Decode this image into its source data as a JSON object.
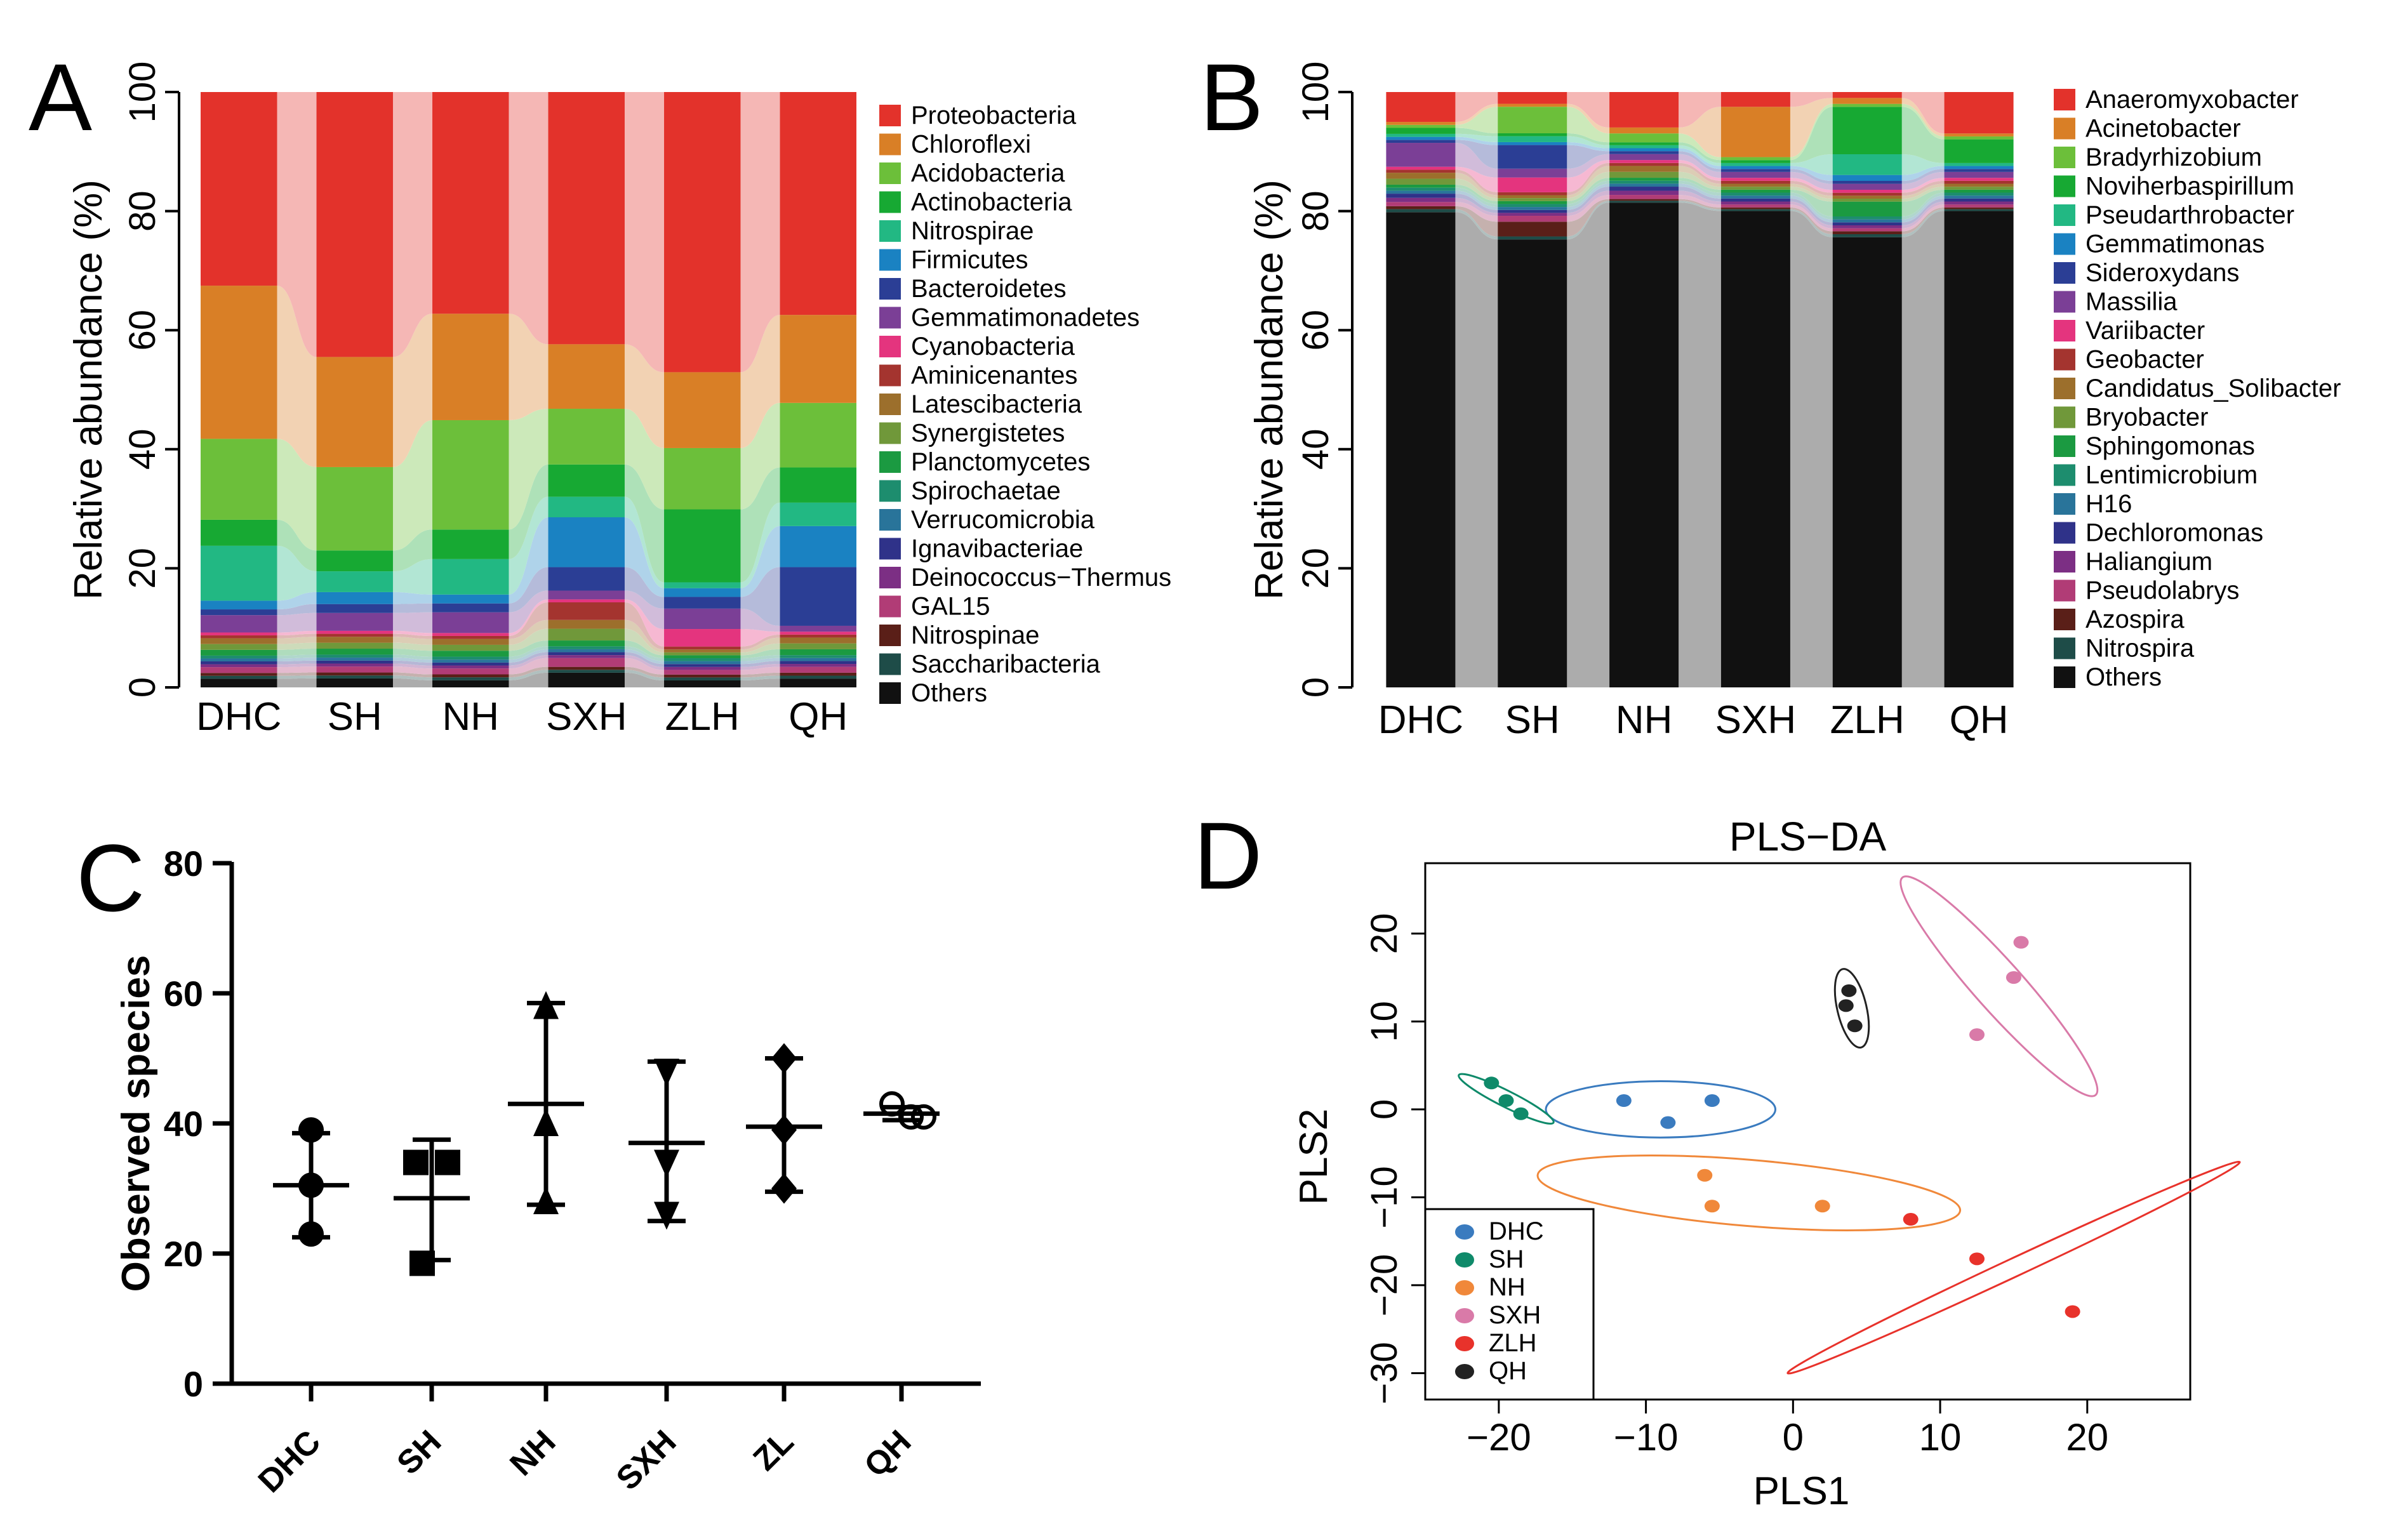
{
  "panels": {
    "A": {
      "label": "A"
    },
    "B": {
      "label": "B"
    },
    "C": {
      "label": "C"
    },
    "D": {
      "label": "D"
    }
  },
  "chart_data": [
    {
      "id": "A",
      "type": "bar",
      "subtype": "stacked-100-with-alluvial-bands",
      "title": "",
      "xlabel": "",
      "ylabel": "Relative abundance (%)",
      "ylim": [
        0,
        100
      ],
      "yticks": [
        0,
        20,
        40,
        60,
        80,
        100
      ],
      "categories": [
        "DHC",
        "SH",
        "NH",
        "SXH",
        "ZLH",
        "QH"
      ],
      "colors": {
        "Proteobacteria": "#e3322b",
        "Chloroflexi": "#d97f26",
        "Acidobacteria": "#6cbf3a",
        "Actinobacteria": "#17a933",
        "Nitrospirae": "#22b883",
        "Firmicutes": "#1a82c2",
        "Bacteroidetes": "#2b3e95",
        "Gemmatimonadetes": "#7b3f96",
        "Cyanobacteria": "#e4347e",
        "Aminicenantes": "#a4342f",
        "Latescibacteria": "#9c6f2c",
        "Synergistetes": "#70983a",
        "Planctomycetes": "#1b9a41",
        "Spirochaetae": "#1d8d6e",
        "Verrucomicrobia": "#29749a",
        "Ignavibacteriae": "#2f3289",
        "Deinococcus-Thermus": "#7c2f84",
        "GAL15": "#b13c76",
        "Nitrospinae": "#5a1f18",
        "Saccharibacteria": "#1e4c48",
        "Others": "#111111"
      },
      "series": [
        {
          "name": "Others",
          "values": [
            1.5,
            1.5,
            1.2,
            2.5,
            1.2,
            1.5
          ]
        },
        {
          "name": "Saccharibacteria",
          "values": [
            0.5,
            0.5,
            0.5,
            0.5,
            0.5,
            0.5
          ]
        },
        {
          "name": "Nitrospinae",
          "values": [
            0.5,
            0.5,
            0.5,
            0.5,
            0.5,
            0.5
          ]
        },
        {
          "name": "GAL15",
          "values": [
            1.0,
            1.0,
            1.0,
            1.5,
            0.8,
            1.0
          ]
        },
        {
          "name": "Deinococcus-Thermus",
          "values": [
            0.5,
            0.5,
            0.5,
            0.5,
            0.5,
            0.5
          ]
        },
        {
          "name": "Ignavibacteriae",
          "values": [
            0.5,
            0.5,
            0.5,
            0.5,
            0.5,
            0.5
          ]
        },
        {
          "name": "Verrucomicrobia",
          "values": [
            0.5,
            0.5,
            0.5,
            0.5,
            0.5,
            0.5
          ]
        },
        {
          "name": "Spirochaetae",
          "values": [
            0.5,
            0.5,
            0.5,
            0.5,
            0.5,
            0.5
          ]
        },
        {
          "name": "Planctomycetes",
          "values": [
            1.0,
            1.0,
            1.0,
            1.0,
            0.5,
            1.0
          ]
        },
        {
          "name": "Synergistetes",
          "values": [
            1.0,
            1.0,
            1.0,
            2.0,
            0.5,
            1.0
          ]
        },
        {
          "name": "Latescibacteria",
          "values": [
            1.0,
            1.0,
            1.0,
            1.5,
            0.5,
            1.0
          ]
        },
        {
          "name": "Aminicenantes",
          "values": [
            0.5,
            0.5,
            0.5,
            3.0,
            0.5,
            0.5
          ]
        },
        {
          "name": "Cyanobacteria",
          "values": [
            0.5,
            0.5,
            0.5,
            0.5,
            3.0,
            0.5
          ]
        },
        {
          "name": "Gemmatimonadetes",
          "values": [
            3.0,
            3.0,
            3.5,
            1.5,
            3.5,
            1.0
          ]
        },
        {
          "name": "Bacteroidetes",
          "values": [
            1.0,
            1.5,
            1.5,
            4.0,
            2.0,
            10.0
          ]
        },
        {
          "name": "Firmicutes",
          "values": [
            1.5,
            2.0,
            1.5,
            8.5,
            1.5,
            7.0
          ]
        },
        {
          "name": "Nitrospirae",
          "values": [
            9.5,
            3.5,
            6.0,
            3.5,
            1.0,
            4.0
          ]
        },
        {
          "name": "Actinobacteria",
          "values": [
            4.5,
            3.5,
            5.0,
            5.5,
            12.5,
            6.0
          ]
        },
        {
          "name": "Acidobacteria",
          "values": [
            14.0,
            14.0,
            18.5,
            9.5,
            10.5,
            11.0
          ]
        },
        {
          "name": "Chloroflexi",
          "values": [
            26.5,
            18.5,
            18.0,
            11.0,
            13.0,
            15.0
          ]
        },
        {
          "name": "Proteobacteria",
          "values": [
            33.5,
            44.5,
            37.5,
            43.0,
            48.0,
            38.0
          ]
        }
      ],
      "legend": [
        "Proteobacteria",
        "Chloroflexi",
        "Acidobacteria",
        "Actinobacteria",
        "Nitrospirae",
        "Firmicutes",
        "Bacteroidetes",
        "Gemmatimonadetes",
        "Cyanobacteria",
        "Aminicenantes",
        "Latescibacteria",
        "Synergistetes",
        "Planctomycetes",
        "Spirochaetae",
        "Verrucomicrobia",
        "Ignavibacteriae",
        "Deinococcus−Thermus",
        "GAL15",
        "Nitrospinae",
        "Saccharibacteria",
        "Others"
      ],
      "legend_position": "right"
    },
    {
      "id": "B",
      "type": "bar",
      "subtype": "stacked-100-with-alluvial-bands",
      "title": "",
      "xlabel": "",
      "ylabel": "Relative abundance (%)",
      "ylim": [
        0,
        100
      ],
      "yticks": [
        0,
        20,
        40,
        60,
        80,
        100
      ],
      "categories": [
        "DHC",
        "SH",
        "NH",
        "SXH",
        "ZLH",
        "QH"
      ],
      "colors": {
        "Anaeromyxobacter": "#e3322b",
        "Acinetobacter": "#d97f26",
        "Bradyrhizobium": "#6cbf3a",
        "Noviherbaspirillum": "#17a933",
        "Pseudarthrobacter": "#22b883",
        "Gemmatimonas": "#1a82c2",
        "Sideroxydans": "#2b3e95",
        "Massilia": "#7b3f96",
        "Variibacter": "#e4347e",
        "Geobacter": "#a4342f",
        "Candidatus_Solibacter": "#9c6f2c",
        "Bryobacter": "#70983a",
        "Sphingomonas": "#1b9a41",
        "Lentimicrobium": "#1d8d6e",
        "H16": "#29749a",
        "Dechloromonas": "#2f3289",
        "Haliangium": "#7c2f84",
        "Pseudolabrys": "#b13c76",
        "Azospira": "#5a1f18",
        "Nitrospira": "#1e4c48",
        "Others": "#111111"
      },
      "series": [
        {
          "name": "Others",
          "values": [
            79.5,
            76.0,
            82.0,
            80.5,
            76.0,
            80.5
          ]
        },
        {
          "name": "Nitrospira",
          "values": [
            0.5,
            0.5,
            0.3,
            0.3,
            0.5,
            0.3
          ]
        },
        {
          "name": "Azospira",
          "values": [
            0.5,
            2.5,
            0.3,
            0.3,
            0.5,
            0.3
          ]
        },
        {
          "name": "Pseudolabrys",
          "values": [
            0.7,
            1.0,
            0.7,
            0.5,
            0.5,
            0.5
          ]
        },
        {
          "name": "Haliangium",
          "values": [
            0.7,
            0.5,
            0.7,
            0.5,
            0.5,
            0.5
          ]
        },
        {
          "name": "Dechloromonas",
          "values": [
            0.7,
            0.5,
            0.7,
            0.5,
            0.5,
            0.5
          ]
        },
        {
          "name": "H16",
          "values": [
            0.5,
            0.5,
            0.5,
            0.5,
            0.5,
            0.5
          ]
        },
        {
          "name": "Lentimicrobium",
          "values": [
            0.5,
            0.5,
            0.5,
            0.5,
            0.5,
            0.5
          ]
        },
        {
          "name": "Sphingomonas",
          "values": [
            0.5,
            0.5,
            0.5,
            0.5,
            2.5,
            0.5
          ]
        },
        {
          "name": "Bryobacter",
          "values": [
            1.0,
            0.5,
            1.0,
            0.5,
            0.5,
            0.5
          ]
        },
        {
          "name": "Candidatus_Solibacter",
          "values": [
            1.0,
            0.5,
            1.0,
            0.5,
            0.5,
            0.5
          ]
        },
        {
          "name": "Geobacter",
          "values": [
            0.5,
            0.5,
            0.5,
            0.5,
            0.5,
            0.5
          ]
        },
        {
          "name": "Variibacter",
          "values": [
            0.5,
            2.5,
            0.5,
            0.5,
            0.5,
            0.5
          ]
        },
        {
          "name": "Massilia",
          "values": [
            4.0,
            1.5,
            1.0,
            1.0,
            1.0,
            1.0
          ]
        },
        {
          "name": "Sideroxydans",
          "values": [
            0.5,
            4.0,
            0.5,
            0.5,
            0.5,
            0.5
          ]
        },
        {
          "name": "Gemmatimonas",
          "values": [
            0.5,
            0.5,
            0.5,
            0.5,
            1.0,
            0.5
          ]
        },
        {
          "name": "Pseudarthrobacter",
          "values": [
            0.5,
            1.0,
            0.5,
            0.5,
            3.5,
            0.5
          ]
        },
        {
          "name": "Noviherbaspirillum",
          "values": [
            1.0,
            0.5,
            0.5,
            0.5,
            8.0,
            4.0
          ]
        },
        {
          "name": "Bradyrhizobium",
          "values": [
            0.5,
            4.5,
            1.5,
            0.5,
            0.5,
            0.5
          ]
        },
        {
          "name": "Acinetobacter",
          "values": [
            0.5,
            0.5,
            1.0,
            8.5,
            1.0,
            0.5
          ]
        },
        {
          "name": "Anaeromyxobacter",
          "values": [
            5.0,
            2.0,
            6.0,
            2.5,
            1.0,
            7.0
          ]
        }
      ],
      "legend": [
        "Anaeromyxobacter",
        "Acinetobacter",
        "Bradyrhizobium",
        "Noviherbaspirillum",
        "Pseudarthrobacter",
        "Gemmatimonas",
        "Sideroxydans",
        "Massilia",
        "Variibacter",
        "Geobacter",
        "Candidatus_Solibacter",
        "Bryobacter",
        "Sphingomonas",
        "Lentimicrobium",
        "H16",
        "Dechloromonas",
        "Haliangium",
        "Pseudolabrys",
        "Azospira",
        "Nitrospira",
        "Others"
      ],
      "legend_position": "right"
    },
    {
      "id": "C",
      "type": "scatter",
      "subtype": "dot-plot-with-mean-and-range",
      "title": "",
      "xlabel": "",
      "ylabel": "Observed species",
      "ylim": [
        0,
        80
      ],
      "yticks": [
        0,
        20,
        40,
        60,
        80
      ],
      "categories": [
        "DHC",
        "SH",
        "NH",
        "SXH",
        "ZL",
        "QH"
      ],
      "groups": [
        {
          "name": "DHC",
          "marker": "circle",
          "points": [
            39,
            30.5,
            23
          ],
          "mean": 30.5,
          "min": 22.5,
          "max": 38.5
        },
        {
          "name": "SH",
          "marker": "square",
          "points": [
            34,
            34,
            18.5
          ],
          "mean": 28.5,
          "min": 19.0,
          "max": 37.5
        },
        {
          "name": "NH",
          "marker": "triangle-up",
          "points": [
            58,
            40,
            28
          ],
          "mean": 43.0,
          "min": 27.5,
          "max": 58.5
        },
        {
          "name": "SXH",
          "marker": "triangle-down",
          "points": [
            48,
            34,
            26
          ],
          "mean": 37.0,
          "min": 25.0,
          "max": 49.5
        },
        {
          "name": "ZL",
          "marker": "diamond",
          "points": [
            50,
            39,
            30
          ],
          "mean": 39.5,
          "min": 29.5,
          "max": 50.0
        },
        {
          "name": "QH",
          "marker": "open-circle",
          "points": [
            43,
            41,
            41
          ],
          "mean": 41.5,
          "min": 40.5,
          "max": 42.5
        }
      ]
    },
    {
      "id": "D",
      "type": "scatter",
      "subtype": "pls-da-with-confidence-ellipses",
      "title": "PLS−DA",
      "xlabel": "PLS1",
      "ylabel": "PLS2",
      "xlim": [
        -25,
        27
      ],
      "ylim": [
        -33,
        28
      ],
      "xticks": [
        "−20",
        "−10",
        "0",
        "10",
        "20"
      ],
      "yticks": [
        "−30",
        "−20",
        "−10",
        "0",
        "10",
        "20"
      ],
      "legend_position": "bottom-left",
      "groups": [
        {
          "name": "DHC",
          "color": "#3a7bbf",
          "points": [
            [
              -11.5,
              1
            ],
            [
              -5.5,
              1
            ],
            [
              -8.5,
              -1.5
            ]
          ],
          "ellipse": {
            "cx": -9,
            "cy": 0,
            "rx": 7.8,
            "ry": 3.2,
            "angle": 0
          }
        },
        {
          "name": "SH",
          "color": "#0f8a6a",
          "points": [
            [
              -20.5,
              3
            ],
            [
              -19.5,
              1
            ],
            [
              -18.5,
              -0.5
            ]
          ],
          "ellipse": {
            "cx": -19.5,
            "cy": 1.2,
            "rx": 4.2,
            "ry": 0.7,
            "angle": -40
          }
        },
        {
          "name": "NH",
          "color": "#f0883a",
          "points": [
            [
              -6,
              -7.5
            ],
            [
              -5.5,
              -11
            ],
            [
              2,
              -11
            ]
          ],
          "ellipse": {
            "cx": -3,
            "cy": -9.5,
            "rx": 14.5,
            "ry": 3.7,
            "angle": -8
          }
        },
        {
          "name": "SXH",
          "color": "#d97aa8",
          "points": [
            [
              12.5,
              8.5
            ],
            [
              15,
              15
            ],
            [
              15.5,
              19
            ]
          ],
          "ellipse": {
            "cx": 14,
            "cy": 14,
            "rx": 14,
            "ry": 1.8,
            "angle": -62
          }
        },
        {
          "name": "ZLH",
          "color": "#e8322b",
          "points": [
            [
              8,
              -12.5
            ],
            [
              12.5,
              -17
            ],
            [
              19,
              -23
            ]
          ],
          "ellipse": {
            "cx": 15,
            "cy": -18,
            "rx": 19.5,
            "ry": 0.8,
            "angle": 38
          }
        },
        {
          "name": "QH",
          "color": "#222222",
          "points": [
            [
              3.8,
              13.5
            ],
            [
              3.6,
              11.8
            ],
            [
              4.2,
              9.5
            ]
          ],
          "ellipse": {
            "cx": 4,
            "cy": 11.5,
            "rx": 4.5,
            "ry": 1.0,
            "angle": -82
          }
        }
      ]
    }
  ]
}
